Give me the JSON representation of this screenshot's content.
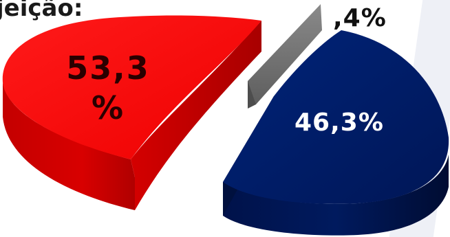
{
  "title_fragment": "jeição:",
  "colors": {
    "red": "#ff0000",
    "navy": "#00175e",
    "gray": "#6e6e6e"
  },
  "chart_data": {
    "type": "pie",
    "style": "3d-exploded",
    "title": "",
    "slices": [
      {
        "name": "",
        "value": 53.3,
        "label_line1": "53,3",
        "label_line2": "%",
        "color": "#ff0000"
      },
      {
        "name": "",
        "value": 46.3,
        "label": "46,3%",
        "color": "#00175e"
      },
      {
        "name": "",
        "value": 0.4,
        "label": ",4%",
        "color": "#6e6e6e"
      }
    ]
  }
}
